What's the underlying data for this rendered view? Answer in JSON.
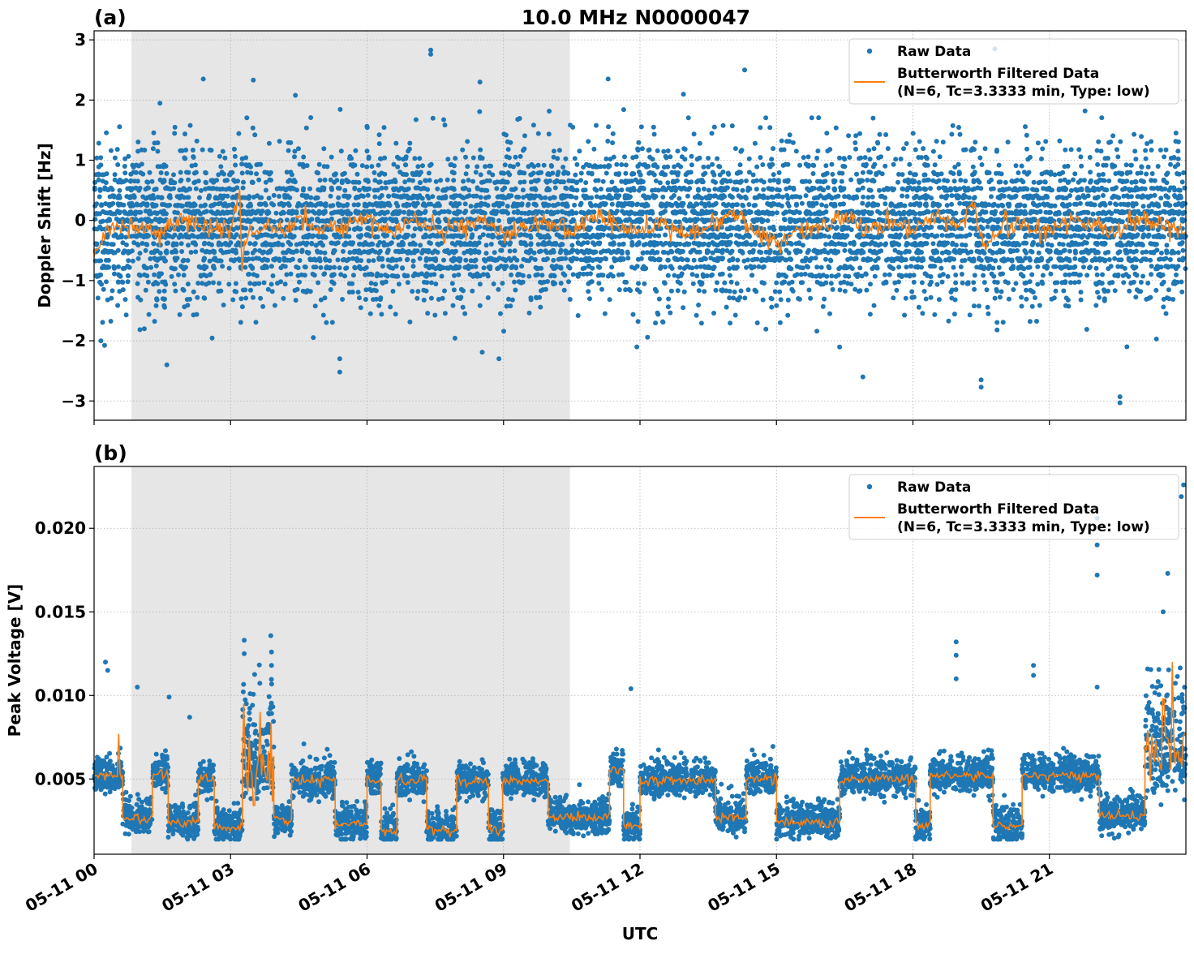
{
  "chart_data": [
    {
      "type": "scatter",
      "panel_label": "(a)",
      "title": "10.0 MHz N0000047",
      "xlabel": "",
      "ylabel": "Doppler Shift [Hz]",
      "xlim_hours": [
        0,
        24
      ],
      "ylim": [
        -3.32,
        3.15
      ],
      "xticks": [
        "05-11 00",
        "05-11 03",
        "05-11 06",
        "05-11 09",
        "05-11 12",
        "05-11 15",
        "05-11 18",
        "05-11 21"
      ],
      "yticks": [
        {
          "v": -3,
          "label": "−3"
        },
        {
          "v": -2,
          "label": "−2"
        },
        {
          "v": -1,
          "label": "−1"
        },
        {
          "v": 0,
          "label": "0"
        },
        {
          "v": 1,
          "label": "1"
        },
        {
          "v": 2,
          "label": "2"
        },
        {
          "v": 3,
          "label": "3"
        }
      ],
      "grid": true,
      "shaded_interval_hours": [
        0.82,
        10.46
      ],
      "legend": {
        "placement": "top-right",
        "entries": [
          "Raw Data",
          "Butterworth Filtered Data",
          "(N=6, Tc=3.3333 min, Type: low)"
        ]
      },
      "series": [
        {
          "name": "Raw Data",
          "color": "#1f77b4",
          "typical_range": [
            -2.2,
            2.2
          ],
          "outliers": [
            [
              7.4,
              2.83
            ],
            [
              7.4,
              2.76
            ],
            [
              2.4,
              2.35
            ],
            [
              3.5,
              2.33
            ],
            [
              0.15,
              -2.0
            ],
            [
              5.4,
              -2.52
            ],
            [
              5.4,
              -2.3
            ],
            [
              16.9,
              -2.6
            ],
            [
              19.5,
              -2.77
            ],
            [
              19.5,
              -2.65
            ],
            [
              22.55,
              -3.03
            ],
            [
              22.55,
              -2.93
            ],
            [
              14.3,
              2.5
            ],
            [
              19.8,
              2.85
            ],
            [
              11.3,
              2.35
            ],
            [
              1.6,
              -2.4
            ],
            [
              8.9,
              -2.3
            ]
          ]
        },
        {
          "name": "Butterworth Filtered Data",
          "color": "#ff7f0e",
          "points": [
            [
              0,
              -0.6
            ],
            [
              0.2,
              -0.2
            ],
            [
              0.5,
              -0.05
            ],
            [
              1,
              -0.1
            ],
            [
              1.5,
              -0.2
            ],
            [
              2,
              0.0
            ],
            [
              2.5,
              -0.15
            ],
            [
              3,
              -0.1
            ],
            [
              3.2,
              0.52
            ],
            [
              3.25,
              -0.85
            ],
            [
              3.4,
              -0.2
            ],
            [
              3.8,
              -0.05
            ],
            [
              4,
              -0.2
            ],
            [
              4.5,
              0.05
            ],
            [
              5,
              -0.15
            ],
            [
              5.5,
              -0.1
            ],
            [
              6,
              0.1
            ],
            [
              6.5,
              -0.2
            ],
            [
              7,
              0.0
            ],
            [
              7.5,
              -0.15
            ],
            [
              8,
              -0.1
            ],
            [
              8.5,
              0.05
            ],
            [
              9,
              -0.2
            ],
            [
              9.5,
              -0.1
            ],
            [
              10,
              0.0
            ],
            [
              10.5,
              -0.25
            ],
            [
              11,
              0.1
            ],
            [
              11.5,
              -0.1
            ],
            [
              12,
              -0.2
            ],
            [
              12.5,
              0.0
            ],
            [
              13,
              -0.3
            ],
            [
              13.5,
              -0.1
            ],
            [
              14,
              0.15
            ],
            [
              14.5,
              -0.2
            ],
            [
              15,
              -0.4
            ],
            [
              15.5,
              -0.15
            ],
            [
              16,
              -0.1
            ],
            [
              16.5,
              0.05
            ],
            [
              17,
              -0.2
            ],
            [
              17.5,
              0.0
            ],
            [
              18,
              -0.15
            ],
            [
              18.5,
              0.05
            ],
            [
              19,
              -0.1
            ],
            [
              19.3,
              0.3
            ],
            [
              19.6,
              -0.5
            ],
            [
              20,
              0.0
            ],
            [
              20.5,
              -0.1
            ],
            [
              21,
              -0.2
            ],
            [
              21.5,
              0.05
            ],
            [
              22,
              -0.1
            ],
            [
              22.5,
              -0.2
            ],
            [
              23,
              0.05
            ],
            [
              23.5,
              -0.1
            ],
            [
              24,
              -0.2
            ]
          ]
        }
      ]
    },
    {
      "type": "scatter",
      "panel_label": "(b)",
      "xlabel": "UTC",
      "ylabel": "Peak Voltage [V]",
      "xlim_hours": [
        0,
        24
      ],
      "ylim": [
        0.0005,
        0.0237
      ],
      "xticks": [
        "05-11 00",
        "05-11 03",
        "05-11 06",
        "05-11 09",
        "05-11 12",
        "05-11 15",
        "05-11 18",
        "05-11 21"
      ],
      "yticks": [
        {
          "v": 0.005,
          "label": "0.005"
        },
        {
          "v": 0.01,
          "label": "0.010"
        },
        {
          "v": 0.015,
          "label": "0.015"
        },
        {
          "v": 0.02,
          "label": "0.020"
        }
      ],
      "grid": true,
      "shaded_interval_hours": [
        0.82,
        10.46
      ],
      "legend": {
        "placement": "top-right",
        "entries": [
          "Raw Data",
          "Butterworth Filtered Data",
          "(N=6, Tc=3.3333 min, Type: low)"
        ]
      },
      "series": [
        {
          "name": "Raw Data",
          "color": "#1f77b4",
          "outliers": [
            [
              0.25,
              0.012
            ],
            [
              0.3,
              0.0115
            ],
            [
              3.3,
              0.0133
            ],
            [
              3.3,
              0.0125
            ],
            [
              3.9,
              0.0126
            ],
            [
              3.9,
              0.0118
            ],
            [
              0.95,
              0.0105
            ],
            [
              1.65,
              0.0099
            ],
            [
              2.1,
              0.0087
            ],
            [
              11.8,
              0.0104
            ],
            [
              18.95,
              0.0132
            ],
            [
              18.95,
              0.0124
            ],
            [
              20.65,
              0.0118
            ],
            [
              22.05,
              0.0206
            ],
            [
              22.05,
              0.019
            ],
            [
              22.05,
              0.0172
            ],
            [
              22.05,
              0.0105
            ],
            [
              23.95,
              0.0226
            ],
            [
              23.9,
              0.0219
            ],
            [
              23.6,
              0.0173
            ],
            [
              23.5,
              0.015
            ],
            [
              18.95,
              0.011
            ],
            [
              20.65,
              0.0112
            ]
          ]
        },
        {
          "name": "Butterworth Filtered Data",
          "color": "#ff7f0e",
          "segments_hours_level": [
            [
              0,
              0.63,
              0.0052
            ],
            [
              0.63,
              1.28,
              0.0027
            ],
            [
              1.28,
              1.63,
              0.0053
            ],
            [
              1.63,
              2.29,
              0.0024
            ],
            [
              2.29,
              2.64,
              0.005
            ],
            [
              2.64,
              3.26,
              0.0021
            ],
            [
              3.26,
              3.95,
              0.006
            ],
            [
              3.95,
              4.34,
              0.0025
            ],
            [
              4.34,
              5.3,
              0.0049
            ],
            [
              5.3,
              6.0,
              0.0023
            ],
            [
              6.0,
              6.31,
              0.005
            ],
            [
              6.31,
              6.66,
              0.0019
            ],
            [
              6.66,
              7.31,
              0.0049
            ],
            [
              7.31,
              7.97,
              0.0019
            ],
            [
              7.97,
              8.67,
              0.0049
            ],
            [
              8.67,
              8.98,
              0.002
            ],
            [
              8.98,
              9.98,
              0.0049
            ],
            [
              9.98,
              11.33,
              0.0027
            ],
            [
              11.33,
              11.64,
              0.0055
            ],
            [
              11.64,
              12.0,
              0.0022
            ],
            [
              12.0,
              13.66,
              0.0049
            ],
            [
              13.66,
              14.33,
              0.0027
            ],
            [
              14.33,
              15.0,
              0.005
            ],
            [
              15.0,
              16.39,
              0.0024
            ],
            [
              16.39,
              18.06,
              0.005
            ],
            [
              18.06,
              18.38,
              0.0022
            ],
            [
              18.38,
              19.76,
              0.0052
            ],
            [
              19.76,
              20.4,
              0.0022
            ],
            [
              20.4,
              22.1,
              0.0052
            ],
            [
              22.1,
              23.1,
              0.0028
            ],
            [
              23.1,
              24.0,
              0.0065
            ]
          ],
          "peaks": [
            [
              0.55,
              0.0077
            ],
            [
              3.3,
              0.0095
            ],
            [
              3.9,
              0.0084
            ],
            [
              23.5,
              0.0098
            ],
            [
              23.7,
              0.012
            ]
          ]
        }
      ]
    }
  ]
}
